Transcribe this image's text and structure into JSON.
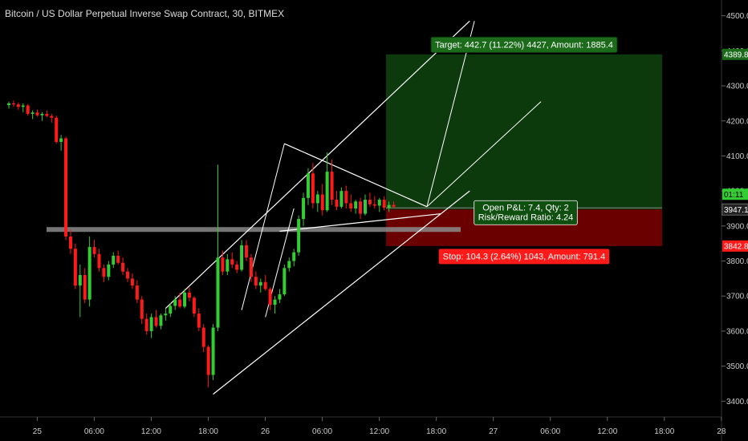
{
  "header": {
    "title": "Bitcoin / US Dollar Perpetual Inverse Swap Contract, 30, BITMEX"
  },
  "colors": {
    "background": "#000000",
    "up": "#33cc33",
    "down": "#ff1a1a",
    "profit_zone": "#0d3a0d",
    "loss_zone": "#6b0000",
    "axis_text": "#cccccc",
    "drawing": "#ffffff"
  },
  "chart_data": {
    "type": "candlestick",
    "xlabel": "",
    "ylabel": "",
    "ylim": [
      3355,
      4545
    ],
    "y_ticks": [
      3400,
      3500,
      3600,
      3700,
      3800,
      3900,
      4000,
      4100,
      4200,
      4300,
      4400,
      4500
    ],
    "y_tick_labels": [
      "3400.0",
      "3500.0",
      "3600.0",
      "3700.0",
      "3800.0",
      "3900.0",
      "4000.0",
      "4100.0",
      "4200.0",
      "4300.0",
      "4400.0",
      "4500.0"
    ],
    "x_ticks": [
      {
        "label": "25",
        "bar": 8
      },
      {
        "label": "06:00",
        "bar": 20
      },
      {
        "label": "12:00",
        "bar": 32
      },
      {
        "label": "18:00",
        "bar": 44
      },
      {
        "label": "26",
        "bar": 56
      },
      {
        "label": "06:00",
        "bar": 68
      },
      {
        "label": "12:00",
        "bar": 80
      },
      {
        "label": "18:00",
        "bar": 92
      },
      {
        "label": "27",
        "bar": 104
      },
      {
        "label": "06:00",
        "bar": 116
      },
      {
        "label": "12:00",
        "bar": 128
      },
      {
        "label": "18:00",
        "bar": 140
      },
      {
        "label": "28",
        "bar": 152
      }
    ],
    "bars_total": 160,
    "candles": [
      [
        4245,
        4255,
        4235,
        4250
      ],
      [
        4250,
        4258,
        4240,
        4247
      ],
      [
        4247,
        4252,
        4232,
        4240
      ],
      [
        4240,
        4250,
        4225,
        4244
      ],
      [
        4244,
        4248,
        4215,
        4220
      ],
      [
        4220,
        4230,
        4205,
        4224
      ],
      [
        4224,
        4232,
        4212,
        4216
      ],
      [
        4216,
        4225,
        4200,
        4220
      ],
      [
        4220,
        4230,
        4210,
        4214
      ],
      [
        4214,
        4220,
        4195,
        4209
      ],
      [
        4209,
        4215,
        4135,
        4140
      ],
      [
        4140,
        4160,
        4115,
        4150
      ],
      [
        4150,
        4155,
        3860,
        3870
      ],
      [
        3870,
        3890,
        3820,
        3835
      ],
      [
        3835,
        3850,
        3720,
        3730
      ],
      [
        3730,
        3790,
        3640,
        3760
      ],
      [
        3760,
        3780,
        3680,
        3690
      ],
      [
        3690,
        3870,
        3670,
        3840
      ],
      [
        3840,
        3860,
        3810,
        3820
      ],
      [
        3820,
        3835,
        3770,
        3780
      ],
      [
        3780,
        3790,
        3740,
        3755
      ],
      [
        3755,
        3800,
        3745,
        3790
      ],
      [
        3790,
        3825,
        3780,
        3815
      ],
      [
        3815,
        3830,
        3790,
        3795
      ],
      [
        3795,
        3810,
        3760,
        3770
      ],
      [
        3770,
        3780,
        3740,
        3750
      ],
      [
        3750,
        3765,
        3720,
        3730
      ],
      [
        3730,
        3745,
        3680,
        3690
      ],
      [
        3690,
        3700,
        3620,
        3635
      ],
      [
        3635,
        3650,
        3590,
        3600
      ],
      [
        3600,
        3650,
        3580,
        3640
      ],
      [
        3640,
        3660,
        3610,
        3615
      ],
      [
        3615,
        3650,
        3605,
        3645
      ],
      [
        3645,
        3665,
        3630,
        3650
      ],
      [
        3650,
        3680,
        3640,
        3672
      ],
      [
        3672,
        3700,
        3660,
        3690
      ],
      [
        3690,
        3710,
        3665,
        3670
      ],
      [
        3670,
        3720,
        3665,
        3710
      ],
      [
        3710,
        3725,
        3685,
        3695
      ],
      [
        3695,
        3700,
        3640,
        3650
      ],
      [
        3650,
        3665,
        3600,
        3610
      ],
      [
        3610,
        3620,
        3540,
        3555
      ],
      [
        3555,
        3560,
        3440,
        3475
      ],
      [
        3475,
        3620,
        3460,
        3610
      ],
      [
        3610,
        4075,
        3600,
        3810
      ],
      [
        3810,
        3830,
        3760,
        3770
      ],
      [
        3770,
        3820,
        3760,
        3805
      ],
      [
        3805,
        3825,
        3780,
        3790
      ],
      [
        3790,
        3800,
        3765,
        3775
      ],
      [
        3775,
        3860,
        3770,
        3845
      ],
      [
        3845,
        3860,
        3800,
        3810
      ],
      [
        3810,
        3820,
        3740,
        3755
      ],
      [
        3755,
        3770,
        3720,
        3730
      ],
      [
        3730,
        3750,
        3710,
        3740
      ],
      [
        3740,
        3760,
        3715,
        3720
      ],
      [
        3720,
        3725,
        3660,
        3675
      ],
      [
        3675,
        3700,
        3650,
        3690
      ],
      [
        3690,
        3720,
        3680,
        3705
      ],
      [
        3705,
        3790,
        3700,
        3780
      ],
      [
        3780,
        3810,
        3770,
        3800
      ],
      [
        3800,
        3835,
        3785,
        3825
      ],
      [
        3825,
        3930,
        3815,
        3920
      ],
      [
        3920,
        3995,
        3900,
        3980
      ],
      [
        3980,
        4065,
        3960,
        4050
      ],
      [
        4050,
        4080,
        3950,
        3965
      ],
      [
        3965,
        4000,
        3940,
        3990
      ],
      [
        3990,
        4020,
        3930,
        3945
      ],
      [
        3945,
        4110,
        3940,
        4055
      ],
      [
        4055,
        4090,
        3960,
        3975
      ],
      [
        3975,
        4000,
        3945,
        3955
      ],
      [
        3955,
        4010,
        3950,
        4000
      ],
      [
        4000,
        4015,
        3950,
        3965
      ],
      [
        3965,
        3990,
        3940,
        3950
      ],
      [
        3950,
        3975,
        3935,
        3970
      ],
      [
        3970,
        3980,
        3920,
        3935
      ],
      [
        3935,
        3990,
        3930,
        3975
      ],
      [
        3975,
        3995,
        3955,
        3962
      ],
      [
        3962,
        3985,
        3950,
        3958
      ],
      [
        3958,
        3980,
        3940,
        3975
      ],
      [
        3975,
        3985,
        3945,
        3952
      ],
      [
        3952,
        3970,
        3940,
        3960
      ],
      [
        3960,
        3970,
        3950,
        3955
      ]
    ],
    "position": {
      "type": "long",
      "entry": 3947.1,
      "target": 4389.8,
      "stop": 3842.8,
      "target_label": "Target: 442.7 (11.22%) 4427, Amount: 1885.4",
      "stop_label": "Stop: 104.3 (2.64%) 1043, Amount: 791.4",
      "pnl_label": "Open P&L: 7.4, Qty: 2",
      "rr_label": "Risk/Reward Ratio: 4.24"
    },
    "price_tags": {
      "target": "4389.8",
      "current": "3947.1",
      "stop": "3842.8",
      "countdown": "01:11"
    },
    "drawings": {
      "channel_lower": [
        [
          43,
          3420
        ],
        [
          97,
          4000
        ]
      ],
      "channel_upper": [
        [
          33,
          3665
        ],
        [
          97,
          4485
        ]
      ],
      "support_band": 3890,
      "pennant_top": [
        [
          58,
          4135
        ],
        [
          88,
          3955
        ]
      ],
      "pennant_bottom": [
        [
          57,
          3885
        ],
        [
          91,
          3935
        ]
      ],
      "flag_lines": [
        [
          [
            49,
            3660
          ],
          [
            58,
            4135
          ]
        ],
        [
          [
            54,
            3640
          ],
          [
            60,
            3950
          ]
        ],
        [
          [
            88,
            3955
          ],
          [
            98,
            4485
          ]
        ],
        [
          [
            88,
            3955
          ],
          [
            112,
            4255
          ]
        ]
      ]
    }
  }
}
